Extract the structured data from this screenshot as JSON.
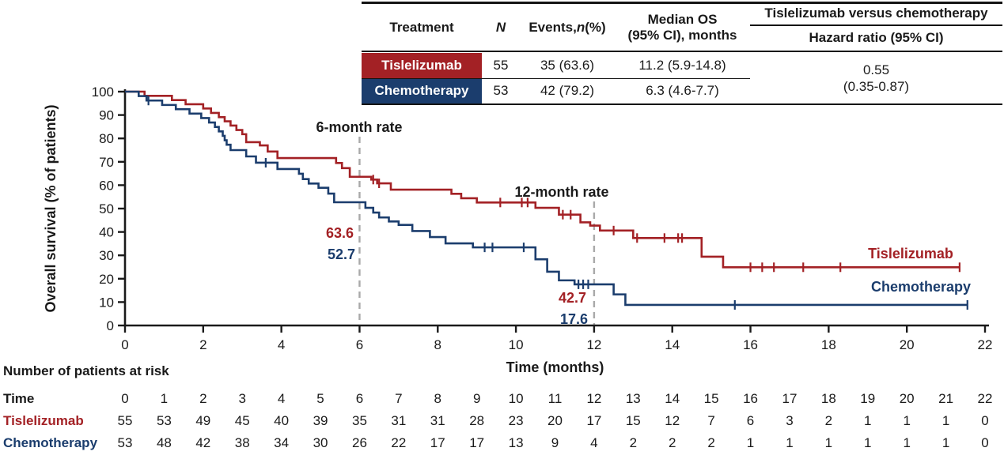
{
  "colors": {
    "tislelizumab": "#A32125",
    "chemotherapy": "#1B3D6D",
    "axis": "#1a1a1a",
    "dashed_line": "#A9A9A9"
  },
  "summary_table": {
    "headers": {
      "treatment": "Treatment",
      "n": "N",
      "events_pre": "Events, ",
      "events_n": "n",
      "events_post": " (%)",
      "median_line1": "Median OS",
      "median_line2": "(95% CI), months",
      "group": "Tislelizumab versus chemotherapy",
      "hazard": "Hazard ratio (95% CI)"
    },
    "rows": [
      {
        "treatment": "Tislelizumab",
        "n": "55",
        "events": "35 (63.6)",
        "median": "11.2 (5.9-14.8)"
      },
      {
        "treatment": "Chemotherapy",
        "n": "53",
        "events": "42 (79.2)",
        "median": "6.3 (4.6-7.7)"
      }
    ],
    "hazard_ratio": {
      "value": "0.55",
      "ci": "(0.35-0.87)"
    }
  },
  "chart_data": {
    "type": "line",
    "subtype": "kaplan-meier-step",
    "ylabel": "Overall survival (% of patients)",
    "xlabel": "Time (months)",
    "xlim": [
      0,
      22
    ],
    "ylim": [
      0,
      100
    ],
    "x_ticks": [
      0,
      2,
      4,
      6,
      8,
      10,
      12,
      14,
      16,
      18,
      20,
      22
    ],
    "y_ticks": [
      0,
      10,
      20,
      30,
      40,
      50,
      60,
      70,
      80,
      90,
      100
    ],
    "grid": false,
    "annotations": {
      "six_month": {
        "label": "6-month rate",
        "t": 6,
        "tislelizumab": "63.6",
        "chemotherapy": "52.7"
      },
      "twelve_month": {
        "label": "12-month rate",
        "t": 12,
        "tislelizumab": "42.7",
        "chemotherapy": "17.6"
      }
    },
    "series": [
      {
        "name": "Tislelizumab",
        "color": "#A32125",
        "steps": [
          [
            0,
            100
          ],
          [
            0.5,
            98.2
          ],
          [
            1.2,
            96.4
          ],
          [
            1.55,
            94.6
          ],
          [
            2.0,
            92.8
          ],
          [
            2.2,
            90.9
          ],
          [
            2.4,
            89.1
          ],
          [
            2.55,
            87.3
          ],
          [
            2.7,
            85.5
          ],
          [
            2.85,
            83.6
          ],
          [
            3.0,
            81.8
          ],
          [
            3.1,
            78.4
          ],
          [
            3.45,
            77.0
          ],
          [
            3.65,
            74.4
          ],
          [
            3.9,
            71.6
          ],
          [
            5.4,
            69.5
          ],
          [
            5.55,
            67.3
          ],
          [
            5.75,
            63.6
          ],
          [
            6.3,
            62.4
          ],
          [
            6.45,
            60.8
          ],
          [
            6.8,
            58.1
          ],
          [
            8.35,
            56.3
          ],
          [
            8.6,
            54.4
          ],
          [
            9.0,
            52.6
          ],
          [
            10.5,
            50.3
          ],
          [
            11.1,
            47.4
          ],
          [
            11.65,
            44.1
          ],
          [
            11.9,
            42.7
          ],
          [
            12.15,
            40.6
          ],
          [
            13.0,
            37.4
          ],
          [
            14.75,
            29.4
          ],
          [
            15.3,
            24.9
          ]
        ],
        "end_t": 21.35,
        "end_censor": true,
        "censor_times": [
          6.35,
          6.5,
          9.6,
          10.15,
          10.3,
          11.2,
          11.4,
          12.5,
          13.1,
          13.8,
          14.15,
          14.25,
          16.0,
          16.3,
          16.6,
          17.35,
          18.3
        ]
      },
      {
        "name": "Chemotherapy",
        "color": "#1B3D6D",
        "steps": [
          [
            0,
            100
          ],
          [
            0.35,
            98.1
          ],
          [
            0.55,
            96.2
          ],
          [
            0.95,
            94.3
          ],
          [
            1.3,
            92.5
          ],
          [
            1.65,
            90.6
          ],
          [
            1.95,
            88.7
          ],
          [
            2.15,
            86.8
          ],
          [
            2.3,
            84.9
          ],
          [
            2.4,
            83.0
          ],
          [
            2.5,
            81.1
          ],
          [
            2.55,
            79.2
          ],
          [
            2.6,
            77.3
          ],
          [
            2.7,
            75.0
          ],
          [
            3.1,
            72.3
          ],
          [
            3.35,
            69.6
          ],
          [
            3.9,
            66.9
          ],
          [
            4.45,
            64.9
          ],
          [
            4.55,
            62.6
          ],
          [
            4.7,
            60.7
          ],
          [
            4.95,
            58.9
          ],
          [
            5.2,
            56.4
          ],
          [
            5.35,
            52.7
          ],
          [
            6.15,
            50.3
          ],
          [
            6.35,
            48.3
          ],
          [
            6.5,
            46.2
          ],
          [
            6.75,
            44.5
          ],
          [
            7.0,
            43.0
          ],
          [
            7.35,
            40.4
          ],
          [
            7.8,
            37.8
          ],
          [
            8.2,
            35.1
          ],
          [
            8.9,
            33.4
          ],
          [
            10.5,
            28.3
          ],
          [
            10.8,
            23.0
          ],
          [
            11.1,
            19.3
          ],
          [
            11.5,
            17.6
          ],
          [
            12.5,
            13.3
          ],
          [
            12.8,
            8.8
          ]
        ],
        "end_t": 21.55,
        "end_censor": true,
        "censor_times": [
          0.6,
          3.6,
          9.2,
          9.4,
          10.2,
          11.6,
          11.72,
          11.85,
          15.6
        ]
      }
    ]
  },
  "risk_table": {
    "title": "Number of patients at risk",
    "time_label": "Time",
    "times": [
      0,
      1,
      2,
      3,
      4,
      5,
      6,
      7,
      8,
      9,
      10,
      11,
      12,
      13,
      14,
      15,
      16,
      17,
      18,
      19,
      20,
      21,
      22
    ],
    "rows": [
      {
        "label": "Tislelizumab",
        "color": "#A32125",
        "values": [
          55,
          53,
          49,
          45,
          40,
          39,
          35,
          31,
          31,
          28,
          23,
          20,
          17,
          15,
          12,
          7,
          6,
          3,
          2,
          1,
          1,
          1,
          0
        ]
      },
      {
        "label": "Chemotherapy",
        "color": "#1B3D6D",
        "values": [
          53,
          48,
          42,
          38,
          34,
          30,
          26,
          22,
          17,
          17,
          13,
          9,
          4,
          2,
          2,
          2,
          1,
          1,
          1,
          1,
          1,
          1,
          0
        ]
      }
    ]
  }
}
